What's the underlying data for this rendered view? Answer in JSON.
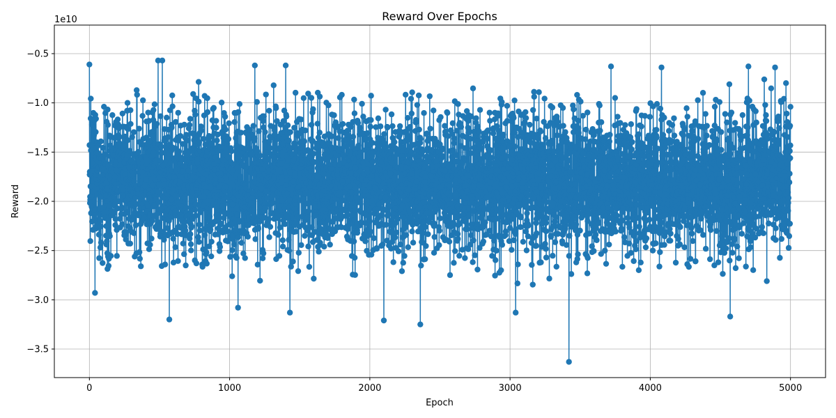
{
  "chart_data": {
    "type": "line",
    "title": "Reward Over Epochs",
    "xlabel": "Epoch",
    "ylabel": "Reward",
    "y_offset_label": "1e10",
    "xlim": [
      -250,
      5250
    ],
    "ylim": [
      -37900000000.0,
      -2100000000.0
    ],
    "x_ticks": [
      0,
      1000,
      2000,
      3000,
      4000,
      5000
    ],
    "x_tick_labels": [
      "0",
      "1000",
      "2000",
      "3000",
      "4000",
      "5000"
    ],
    "y_ticks": [
      -35000000000.0,
      -30000000000.0,
      -25000000000.0,
      -20000000000.0,
      -15000000000.0,
      -10000000000.0,
      -5000000000.0
    ],
    "y_tick_labels": [
      "−3.5",
      "−3.0",
      "−2.5",
      "−2.0",
      "−1.5",
      "−1.0",
      "−0.5"
    ],
    "grid": true,
    "legend": "none",
    "marker": "circle",
    "color": "#1f77b4",
    "series": [
      {
        "x_start": 0,
        "x_step": 1,
        "count": 5000,
        "values_sample": [
          {
            "x": 0,
            "y": -6100000000.0
          },
          {
            "x": 40,
            "y": -29300000000.0
          },
          {
            "x": 490,
            "y": -5700000000.0
          },
          {
            "x": 520,
            "y": -5700000000.0
          },
          {
            "x": 570,
            "y": -32000000000.0
          },
          {
            "x": 1060,
            "y": -30800000000.0
          },
          {
            "x": 1180,
            "y": -6200000000.0
          },
          {
            "x": 1400,
            "y": -6200000000.0
          },
          {
            "x": 1430,
            "y": -31300000000.0
          },
          {
            "x": 2100,
            "y": -32100000000.0
          },
          {
            "x": 2360,
            "y": -32500000000.0
          },
          {
            "x": 3040,
            "y": -31300000000.0
          },
          {
            "x": 3420,
            "y": -36300000000.0
          },
          {
            "x": 3720,
            "y": -6300000000.0
          },
          {
            "x": 4080,
            "y": -6400000000.0
          },
          {
            "x": 4570,
            "y": -31700000000.0
          },
          {
            "x": 4700,
            "y": -6300000000.0
          },
          {
            "x": 4890,
            "y": -6400000000.0
          },
          {
            "x": 5000,
            "y": -10400000000.0
          }
        ],
        "typical_range": [
          -29000000000.0,
          -7000000000.0
        ],
        "center": -17500000000.0
      }
    ]
  }
}
